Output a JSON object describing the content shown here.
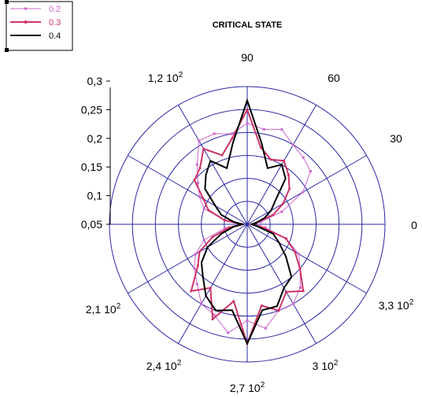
{
  "chart_data": {
    "type": "polar-line",
    "title": "CRITICAL STATE",
    "angle_unit": "degrees",
    "angle_tick_labels": [
      {
        "angle": 0,
        "base": "0",
        "exp": ""
      },
      {
        "angle": 30,
        "base": "30",
        "exp": ""
      },
      {
        "angle": 60,
        "base": "60",
        "exp": ""
      },
      {
        "angle": 90,
        "base": "90",
        "exp": ""
      },
      {
        "angle": 120,
        "base": "1,2 10",
        "exp": "2"
      },
      {
        "angle": 210,
        "base": "2,1 10",
        "exp": "2"
      },
      {
        "angle": 240,
        "base": "2,4 10",
        "exp": "2"
      },
      {
        "angle": 270,
        "base": "2,7 10",
        "exp": "2"
      },
      {
        "angle": 300,
        "base": "3 10",
        "exp": "2"
      },
      {
        "angle": 330,
        "base": "3,3 10",
        "exp": "2"
      }
    ],
    "radial_ticks": [
      0.05,
      0.1,
      0.15,
      0.2,
      0.25,
      0.3
    ],
    "radial_tick_labels": [
      "0,05",
      "0,1",
      "0,15",
      "0,2",
      "0,25",
      "0,3"
    ],
    "rlim": [
      0,
      0.3
    ],
    "grid": true,
    "legend_position": "top-left",
    "series": [
      {
        "name": "0.2",
        "color": "#cc66cc",
        "marker": "square",
        "angles": [
          0,
          10,
          20,
          30,
          40,
          50,
          60,
          70,
          80,
          90,
          100,
          110,
          120,
          130,
          140,
          150,
          160,
          170,
          180,
          190,
          200,
          210,
          220,
          230,
          240,
          250,
          260,
          270,
          280,
          290,
          300,
          310,
          320,
          330,
          340,
          350
        ],
        "values": [
          0.01,
          0.03,
          0.08,
          0.14,
          0.18,
          0.19,
          0.2,
          0.22,
          0.21,
          0.22,
          0.2,
          0.21,
          0.21,
          0.17,
          0.14,
          0.12,
          0.1,
          0.05,
          0.01,
          0.05,
          0.1,
          0.13,
          0.15,
          0.17,
          0.2,
          0.21,
          0.24,
          0.21,
          0.23,
          0.2,
          0.2,
          0.18,
          0.15,
          0.13,
          0.09,
          0.04
        ]
      },
      {
        "name": "0.3",
        "color": "#cc3366",
        "marker": "dot",
        "angles": [
          0,
          10,
          20,
          30,
          40,
          50,
          60,
          70,
          80,
          90,
          100,
          110,
          120,
          130,
          140,
          150,
          160,
          170,
          180,
          190,
          200,
          210,
          220,
          230,
          240,
          250,
          260,
          270,
          280,
          290,
          300,
          310,
          320,
          330,
          340,
          350
        ],
        "values": [
          0.01,
          0.02,
          0.06,
          0.09,
          0.12,
          0.14,
          0.16,
          0.15,
          0.17,
          0.25,
          0.19,
          0.16,
          0.19,
          0.16,
          0.15,
          0.11,
          0.09,
          0.05,
          0.01,
          0.04,
          0.08,
          0.12,
          0.14,
          0.19,
          0.16,
          0.22,
          0.17,
          0.26,
          0.18,
          0.2,
          0.17,
          0.19,
          0.15,
          0.12,
          0.09,
          0.03
        ]
      },
      {
        "name": "0.4",
        "color": "#000000",
        "marker": "none",
        "angles": [
          0,
          10,
          20,
          30,
          40,
          50,
          60,
          70,
          80,
          90,
          100,
          110,
          120,
          130,
          140,
          150,
          160,
          170,
          180,
          190,
          200,
          210,
          220,
          230,
          240,
          250,
          260,
          270,
          280,
          290,
          300,
          310,
          320,
          330,
          340,
          350
        ],
        "values": [
          0.01,
          0.02,
          0.04,
          0.06,
          0.08,
          0.13,
          0.15,
          0.13,
          0.18,
          0.27,
          0.18,
          0.13,
          0.16,
          0.14,
          0.12,
          0.08,
          0.06,
          0.03,
          0.01,
          0.03,
          0.06,
          0.1,
          0.13,
          0.15,
          0.18,
          0.2,
          0.19,
          0.26,
          0.19,
          0.19,
          0.16,
          0.15,
          0.11,
          0.08,
          0.06,
          0.02
        ]
      }
    ]
  }
}
